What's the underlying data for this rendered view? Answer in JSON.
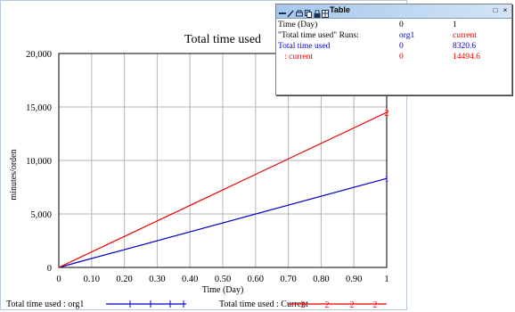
{
  "chart_data": {
    "type": "line",
    "title": "Total time used",
    "xlabel": "Time (Day)",
    "ylabel": "minutes/orden",
    "xlim": [
      0,
      1
    ],
    "ylim": [
      0,
      20000
    ],
    "x_ticks": [
      "0",
      "0.10",
      "0.20",
      "0.30",
      "0.40",
      "0.50",
      "0.60",
      "0.70",
      "0.80",
      "0.90",
      "1"
    ],
    "x_tick_values": [
      0,
      0.1,
      0.2,
      0.3,
      0.4,
      0.5,
      0.6,
      0.7,
      0.8,
      0.9,
      1
    ],
    "y_ticks": [
      "0",
      "5,000",
      "10,000",
      "15,000",
      "20,000"
    ],
    "y_tick_values": [
      0,
      5000,
      10000,
      15000,
      20000
    ],
    "grid": true,
    "legend_placement": "bottom",
    "series": [
      {
        "name": "Total time used : org1",
        "color": "#0000cc",
        "marker": "1",
        "x": [
          0,
          1
        ],
        "y": [
          0,
          8320.6
        ]
      },
      {
        "name": "Total time used : Current",
        "color": "#ee0000",
        "marker": "2",
        "x": [
          0,
          1
        ],
        "y": [
          0,
          14494.6
        ]
      }
    ]
  },
  "table_window": {
    "title": "Table",
    "minimize_label": "□",
    "close_label": "×",
    "rows": [
      {
        "label": "Time (Day)",
        "col1": "0",
        "col2": "1",
        "color": "#000000"
      },
      {
        "label": "\"Total time used\"  Runs:",
        "col1": "org1",
        "col2": "current",
        "color": "#000000"
      },
      {
        "label": "Total time used",
        "col1": "0",
        "col2": "8320.6",
        "color": "#0000cc"
      },
      {
        "label": "   : current",
        "col1": "0",
        "col2": "14494.6",
        "color": "#ee0000"
      }
    ]
  },
  "colors": {
    "grid": "#b4b4b4",
    "axis": "#000000",
    "series_org1": "#0000cc",
    "series_current": "#ee0000",
    "window_border": "#b8c8dc",
    "titlebar": "#a6c8ec"
  }
}
